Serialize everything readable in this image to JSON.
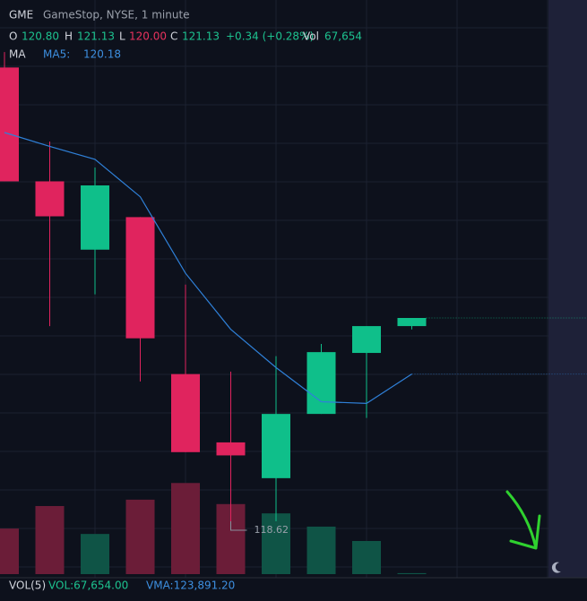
{
  "header": {
    "symbol": "GME",
    "description": "GameStop, NYSE, 1 minute",
    "open_label": "O",
    "open": "120.80",
    "high_label": "H",
    "high": "121.13",
    "low_label": "L",
    "low": "120.00",
    "close_label": "C",
    "close": "121.13",
    "change": "+0.34 (+0.28%)",
    "volume_label": "Vol",
    "volume": "67,654",
    "ma_label": "MA",
    "ma_name": "MA5:",
    "ma_value": "120.18"
  },
  "footer": {
    "vol_name": "VOL(5)",
    "vol": "VOL:67,654.00",
    "vma": "VMA:123,891.20"
  },
  "chart_data": {
    "type": "candlestick",
    "open": [
      124.31,
      122.91,
      122.07,
      122.47,
      120.54,
      119.7,
      119.26,
      120.05,
      120.8,
      121.13
    ],
    "high": [
      124.5,
      123.4,
      123.08,
      122.47,
      121.64,
      120.57,
      120.76,
      120.91,
      121.13,
      121.23
    ],
    "low": [
      122.91,
      121.13,
      121.52,
      120.45,
      119.58,
      118.62,
      118.73,
      120.05,
      120.0,
      121.09
    ],
    "close": [
      122.91,
      122.48,
      122.86,
      120.98,
      119.58,
      119.54,
      120.05,
      120.81,
      121.13,
      121.23
    ],
    "ma5": [
      123.51,
      123.34,
      123.18,
      122.72,
      121.78,
      121.09,
      120.62,
      120.2,
      120.18,
      120.54
    ],
    "volume": [
      93000,
      139000,
      82000,
      152000,
      186000,
      143000,
      124000,
      97000,
      67654,
      2000
    ],
    "up_color": "#0fbf8a",
    "down_color": "#e0245e",
    "ma_color": "#2f80d8",
    "up_volume_color": "#0f5446",
    "down_volume_color": "#6b1d38",
    "ylim": [
      118.08,
      125.14
    ],
    "y2lim": [
      0,
      1172000
    ]
  }
}
